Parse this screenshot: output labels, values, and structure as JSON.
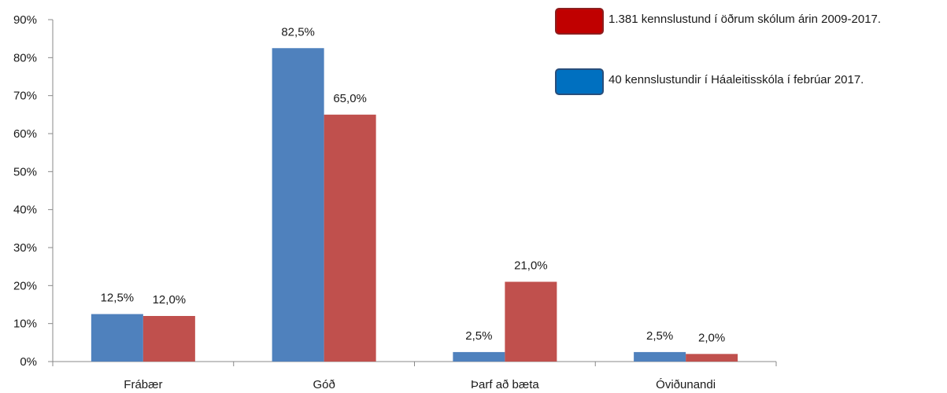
{
  "chart_data": {
    "type": "bar",
    "categories": [
      "Frábær",
      "Góð",
      "Þarf að bæta",
      "Óviðunandi"
    ],
    "series": [
      {
        "name": "40 kennslustundir í Háaleitisskóla í febrúar 2017.",
        "values": [
          12.5,
          82.5,
          2.5,
          2.5
        ],
        "labels": [
          "12,5%",
          "82,5%",
          "2,5%",
          "2,5%"
        ],
        "color": "#4f81bd"
      },
      {
        "name": "1.381 kennslustund í öðrum skólum árin 2009-2017.",
        "values": [
          12.0,
          65.0,
          21.0,
          2.0
        ],
        "labels": [
          "12,0%",
          "65,0%",
          "21,0%",
          "2,0%"
        ],
        "color": "#c0504d"
      }
    ],
    "y_ticks": [
      "0%",
      "10%",
      "20%",
      "30%",
      "40%",
      "50%",
      "60%",
      "70%",
      "80%",
      "90%"
    ],
    "ylim": [
      0,
      90
    ],
    "grid": false,
    "legend_placement": "top-right",
    "legend_swatch_colors": [
      "#c00000",
      "#0070c0"
    ]
  }
}
